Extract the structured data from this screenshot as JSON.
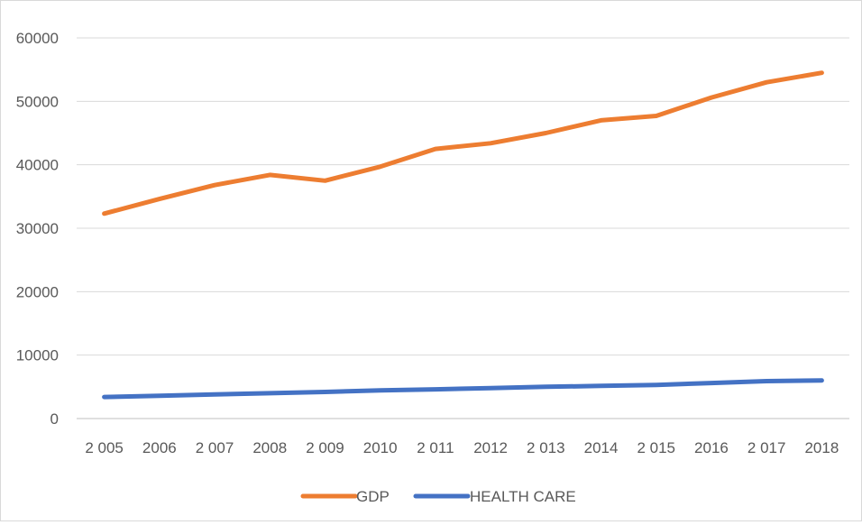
{
  "chart_data": {
    "type": "line",
    "categories": [
      "2 005",
      "2006",
      "2 007",
      "2008",
      "2 009",
      "2010",
      "2 011",
      "2012",
      "2 013",
      "2014",
      "2 015",
      "2016",
      "2 017",
      "2018"
    ],
    "series": [
      {
        "name": "GDP",
        "color": "#ED7D31",
        "values": [
          32300,
          34600,
          36800,
          38400,
          37500,
          39700,
          42500,
          43400,
          45000,
          47000,
          47700,
          50600,
          53000,
          54500
        ]
      },
      {
        "name": "HEALTH CARE",
        "color": "#4472C4",
        "values": [
          3400,
          3600,
          3800,
          4000,
          4200,
          4450,
          4600,
          4800,
          5000,
          5150,
          5300,
          5600,
          5900,
          6000
        ]
      }
    ],
    "ylim": [
      0,
      60000
    ],
    "yticks": [
      "0",
      "10000",
      "20000",
      "30000",
      "40000",
      "50000",
      "60000"
    ],
    "ytick_values": [
      0,
      10000,
      20000,
      30000,
      40000,
      50000,
      60000
    ],
    "grid": true,
    "legend": "bottom"
  }
}
